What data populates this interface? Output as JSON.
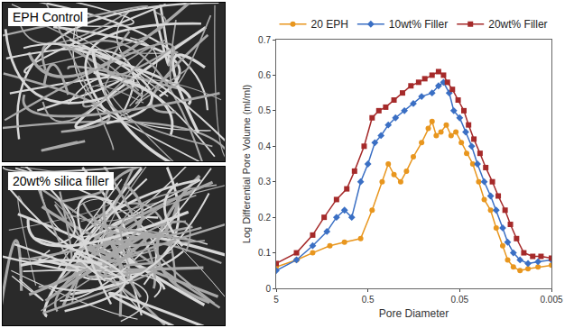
{
  "panels": [
    {
      "label": "EPH Control"
    },
    {
      "label": "20wt% silica filler"
    }
  ],
  "chart_data": {
    "type": "line",
    "x_label": "Pore Diameter",
    "y_label": "Log Differential Pore Volume (ml/ml)",
    "log": "x",
    "grid": false,
    "legend": "top",
    "xlim": [
      5,
      0.005
    ],
    "xticks": [
      5,
      0.5,
      0.05,
      0.005
    ],
    "ylim": [
      0,
      0.7
    ],
    "yticks": [
      0,
      0.1,
      0.2,
      0.3,
      0.4,
      0.5,
      0.6,
      0.7
    ],
    "series": [
      {
        "name": "20 EPH",
        "color": "#e8961e",
        "marker": "circle",
        "line_style": "solid",
        "x": [
          5,
          3,
          2,
          1.3,
          0.9,
          0.6,
          0.45,
          0.35,
          0.3,
          0.26,
          0.22,
          0.19,
          0.16,
          0.13,
          0.11,
          0.1,
          0.09,
          0.08,
          0.07,
          0.062,
          0.055,
          0.048,
          0.042,
          0.036,
          0.031,
          0.027,
          0.023,
          0.02,
          0.017,
          0.015,
          0.013,
          0.011,
          0.009,
          0.007,
          0.005
        ],
        "values": [
          0.06,
          0.08,
          0.1,
          0.12,
          0.13,
          0.14,
          0.22,
          0.3,
          0.35,
          0.32,
          0.3,
          0.33,
          0.37,
          0.41,
          0.45,
          0.47,
          0.43,
          0.44,
          0.46,
          0.43,
          0.44,
          0.41,
          0.38,
          0.35,
          0.3,
          0.25,
          0.22,
          0.17,
          0.12,
          0.08,
          0.06,
          0.05,
          0.055,
          0.06,
          0.065
        ]
      },
      {
        "name": "10wt% Filler",
        "color": "#3a6fc4",
        "marker": "diamond",
        "line_style": "solid",
        "x": [
          5,
          3,
          2,
          1.4,
          1.1,
          0.9,
          0.75,
          0.6,
          0.5,
          0.42,
          0.36,
          0.3,
          0.25,
          0.2,
          0.16,
          0.13,
          0.1,
          0.085,
          0.075,
          0.065,
          0.058,
          0.05,
          0.043,
          0.037,
          0.032,
          0.027,
          0.023,
          0.02,
          0.017,
          0.015,
          0.013,
          0.011,
          0.009,
          0.007,
          0.005
        ],
        "values": [
          0.05,
          0.08,
          0.12,
          0.16,
          0.2,
          0.22,
          0.2,
          0.3,
          0.35,
          0.41,
          0.43,
          0.46,
          0.48,
          0.5,
          0.52,
          0.54,
          0.55,
          0.57,
          0.58,
          0.55,
          0.5,
          0.48,
          0.44,
          0.4,
          0.35,
          0.3,
          0.26,
          0.22,
          0.17,
          0.13,
          0.1,
          0.08,
          0.07,
          0.075,
          0.08
        ]
      },
      {
        "name": "20wt% Filler",
        "color": "#a52a2a",
        "marker": "square",
        "line_style": "solid",
        "x": [
          5,
          3,
          2,
          1.5,
          1.1,
          0.85,
          0.7,
          0.55,
          0.45,
          0.38,
          0.32,
          0.26,
          0.21,
          0.17,
          0.14,
          0.12,
          0.1,
          0.085,
          0.075,
          0.068,
          0.06,
          0.052,
          0.045,
          0.04,
          0.035,
          0.03,
          0.026,
          0.022,
          0.019,
          0.016,
          0.014,
          0.012,
          0.01,
          0.008,
          0.0065,
          0.005
        ],
        "values": [
          0.07,
          0.1,
          0.15,
          0.2,
          0.25,
          0.28,
          0.33,
          0.4,
          0.48,
          0.5,
          0.51,
          0.53,
          0.55,
          0.57,
          0.58,
          0.59,
          0.6,
          0.61,
          0.6,
          0.58,
          0.56,
          0.53,
          0.5,
          0.46,
          0.42,
          0.38,
          0.34,
          0.3,
          0.26,
          0.22,
          0.18,
          0.14,
          0.1,
          0.09,
          0.09,
          0.085
        ]
      }
    ]
  }
}
